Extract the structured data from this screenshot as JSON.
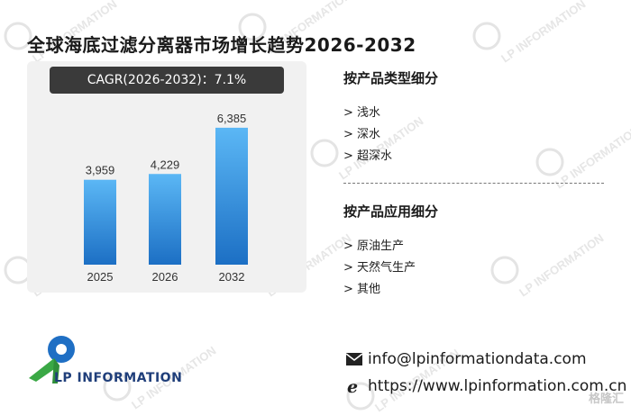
{
  "header": {
    "title": "全球海底过滤分离器市场增长趋势2026-2032"
  },
  "cagr_label": "CAGR(2026-2032)：7.1%",
  "chart_data": {
    "type": "bar",
    "categories": [
      "2025",
      "2026",
      "2032"
    ],
    "values": [
      3959,
      4229,
      6385
    ],
    "value_labels": [
      "3,959",
      "4,229",
      "6,385"
    ],
    "title": "全球海底过滤分离器市场增长趋势2026-2032",
    "xlabel": "",
    "ylabel": "",
    "ylim": [
      0,
      7000
    ],
    "grid": false,
    "bar_color_top": "#5bb7f5",
    "bar_color_bottom": "#1c6fc4"
  },
  "segments": {
    "type": {
      "title": "按产品类型细分",
      "items": [
        "> 浅水",
        "> 深水",
        "> 超深水"
      ]
    },
    "application": {
      "title": "按产品应用细分",
      "items": [
        "> 原油生产",
        "> 天然气生产",
        "> 其他"
      ]
    }
  },
  "branding": {
    "logo_text": "LP INFORMATION",
    "watermark_text": "LP INFORMATION",
    "corner_badge": "格隆汇"
  },
  "contact": {
    "email": "info@lpinformationdata.com",
    "website": "https://www.lpinformation.com.cn"
  },
  "icons": {
    "email": "envelope-icon",
    "web": "ie-browser-icon"
  }
}
